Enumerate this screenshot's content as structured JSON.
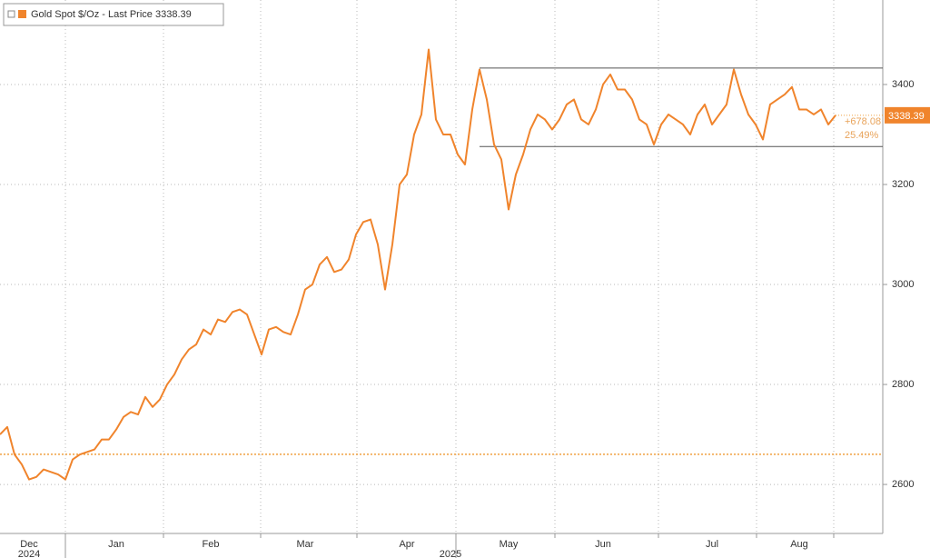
{
  "chart_data": {
    "type": "line",
    "legend_text": "- Last Price",
    "annotations": [
      "+678.08",
      "25.49%"
    ],
    "reference_line": 2660.31,
    "channel": {
      "upper": 3433,
      "lower": 3276
    },
    "categories": [
      null,
      null,
      null,
      null,
      "Dec",
      null,
      null,
      null,
      null,
      null,
      null,
      null,
      null,
      null,
      null,
      null,
      "Jan",
      null,
      null,
      null,
      null,
      null,
      null,
      null,
      null,
      null,
      null,
      null,
      null,
      "Feb",
      null,
      null,
      null,
      null,
      null,
      null,
      null,
      null,
      null,
      null,
      null,
      null,
      "Mar",
      null,
      null,
      null,
      null,
      null,
      null,
      null,
      null,
      null,
      null,
      null,
      null,
      null,
      "Apr",
      null,
      null,
      null,
      null,
      null,
      null,
      null,
      null,
      null,
      null,
      null,
      null,
      null,
      "May",
      null,
      null,
      null,
      null,
      null,
      null,
      null,
      null,
      null,
      null,
      null,
      null,
      "Jun",
      null,
      null,
      null,
      null,
      null,
      null,
      null,
      null,
      null,
      null,
      null,
      null,
      null,
      null,
      "Jul",
      null,
      null,
      null,
      null,
      null,
      null,
      null,
      null,
      null,
      null,
      null,
      "Aug",
      null,
      null,
      null,
      null,
      null
    ],
    "category_sublabels": [
      null,
      null,
      null,
      null,
      "2024",
      null,
      null,
      null,
      null,
      null,
      null,
      null,
      null,
      null,
      null,
      null,
      null,
      null,
      null,
      null,
      null,
      null,
      null,
      null,
      null,
      null,
      null,
      null,
      null,
      null,
      null,
      null,
      null,
      null,
      null,
      null,
      null,
      null,
      null,
      null,
      null,
      null,
      null,
      null,
      null,
      null,
      null,
      null,
      null,
      null,
      null,
      null,
      null,
      null,
      null,
      null,
      null,
      null,
      null,
      null,
      null,
      null,
      "2025",
      null,
      null,
      null,
      null,
      null,
      null,
      null,
      null,
      null,
      null,
      null,
      null,
      null,
      null,
      null,
      null,
      null,
      null,
      null,
      null,
      null,
      null,
      null,
      null,
      null,
      null,
      null,
      null,
      null,
      null,
      null,
      null,
      null,
      null,
      null,
      null,
      null,
      null,
      null,
      null,
      null,
      null,
      null,
      null,
      null,
      null,
      null,
      null,
      null,
      null,
      null,
      null,
      null
    ],
    "series": [
      {
        "name": "Gold Spot $/Oz",
        "color": "#f0842c",
        "values": [
          2700,
          2715,
          2660,
          2640,
          2610,
          2615,
          2630,
          2625,
          2620,
          2610,
          2650,
          2660,
          2665,
          2670,
          2690,
          2690,
          2710,
          2735,
          2745,
          2740,
          2775,
          2755,
          2770,
          2800,
          2820,
          2850,
          2870,
          2880,
          2910,
          2900,
          2930,
          2925,
          2945,
          2950,
          2940,
          2900,
          2860,
          2910,
          2915,
          2905,
          2900,
          2940,
          2990,
          3000,
          3040,
          3055,
          3025,
          3030,
          3050,
          3100,
          3125,
          3130,
          3080,
          2990,
          3080,
          3200,
          3220,
          3300,
          3340,
          3470,
          3330,
          3300,
          3300,
          3260,
          3240,
          3350,
          3430,
          3370,
          3280,
          3250,
          3150,
          3220,
          3260,
          3310,
          3340,
          3330,
          3310,
          3330,
          3360,
          3370,
          3330,
          3320,
          3350,
          3400,
          3420,
          3390,
          3390,
          3370,
          3330,
          3320,
          3280,
          3320,
          3340,
          3330,
          3320,
          3300,
          3340,
          3360,
          3320,
          3340,
          3360,
          3430,
          3380,
          3340,
          3320,
          3290,
          3360,
          3370,
          3380,
          3395,
          3350,
          3350,
          3340,
          3350,
          3320,
          3338.39
        ]
      }
    ],
    "ylim": [
      2502,
      3569
    ],
    "yticks": [
      2600,
      2800,
      3000,
      3200,
      3400
    ],
    "grid": true
  }
}
